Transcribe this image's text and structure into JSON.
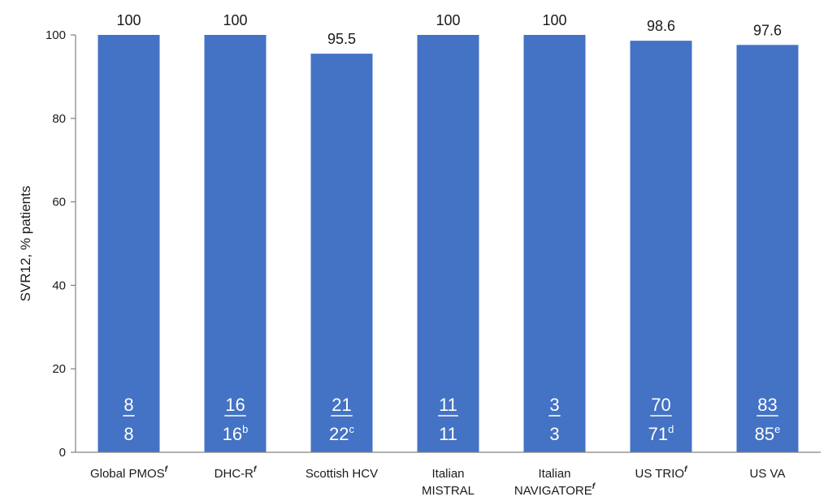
{
  "chart_data": {
    "type": "bar",
    "title": "",
    "xlabel": "",
    "ylabel": "SVR12, % patients",
    "ylim": [
      0,
      100
    ],
    "yticks": [
      0,
      20,
      40,
      60,
      80,
      100
    ],
    "grid": false,
    "bar_color": "#4472c4",
    "categories": [
      {
        "lines": [
          "Global PMOS"
        ],
        "sup": "f"
      },
      {
        "lines": [
          "DHC-R"
        ],
        "sup": "f"
      },
      {
        "lines": [
          "Scottish HCV"
        ],
        "sup": ""
      },
      {
        "lines": [
          "Italian",
          "MISTRAL"
        ],
        "sup": ""
      },
      {
        "lines": [
          "Italian",
          "NAVIGATORE"
        ],
        "sup": "f"
      },
      {
        "lines": [
          "US TRIO"
        ],
        "sup": "f"
      },
      {
        "lines": [
          "US VA"
        ],
        "sup": ""
      }
    ],
    "values": [
      100,
      100,
      95.5,
      100,
      100,
      98.6,
      97.6
    ],
    "value_labels": [
      "100",
      "100",
      "95.5",
      "100",
      "100",
      "98.6",
      "97.6"
    ],
    "fractions": [
      {
        "numerator": "8",
        "denominator": "8",
        "sup": ""
      },
      {
        "numerator": "16",
        "denominator": "16",
        "sup": "b"
      },
      {
        "numerator": "21",
        "denominator": "22",
        "sup": "c"
      },
      {
        "numerator": "11",
        "denominator": "11",
        "sup": ""
      },
      {
        "numerator": "3",
        "denominator": "3",
        "sup": ""
      },
      {
        "numerator": "70",
        "denominator": "71",
        "sup": "d"
      },
      {
        "numerator": "83",
        "denominator": "85",
        "sup": "e"
      }
    ]
  }
}
